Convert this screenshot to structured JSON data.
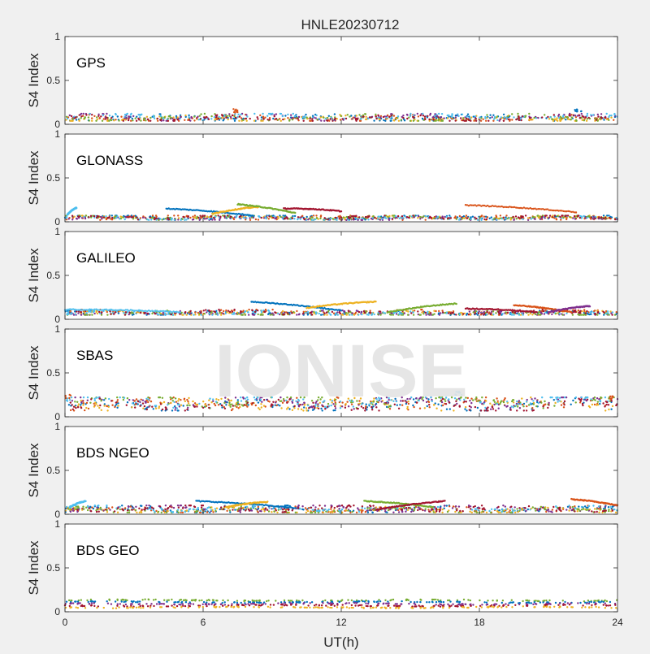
{
  "chart_data": {
    "type": "scatter",
    "title": "HNLE20230712",
    "xlabel": "UT(h)",
    "ylabel": "S4 Index",
    "xlim": [
      0,
      24
    ],
    "ylim": [
      0,
      1
    ],
    "xticks": [
      0,
      6,
      12,
      18,
      24
    ],
    "yticks": [
      0,
      0.5,
      1
    ],
    "ytick_labels": [
      "0",
      "0.5",
      "1"
    ],
    "grid": false,
    "watermark": "IONISE",
    "series_colors": [
      "#0072BD",
      "#D95319",
      "#EDB120",
      "#7E2F8E",
      "#77AC30",
      "#4DBEEE",
      "#A2142F"
    ],
    "panels": [
      {
        "label": "GPS",
        "baseline_range": [
          0.04,
          0.12
        ],
        "peaks": [
          {
            "x": 7.4,
            "y": 0.18
          },
          {
            "x": 22.3,
            "y": 0.19
          }
        ]
      },
      {
        "label": "GLONASS",
        "baseline_range": [
          0.02,
          0.07
        ],
        "arcs": [
          {
            "x_start": 0.1,
            "x_end": 0.5,
            "y_start": 0.08,
            "y_end": 0.16
          },
          {
            "x_start": 4.4,
            "x_end": 8.2,
            "y_start": 0.15,
            "y_end": 0.07
          },
          {
            "x_start": 6.4,
            "x_end": 8.4,
            "y_start": 0.09,
            "y_end": 0.17
          },
          {
            "x_start": 7.5,
            "x_end": 10.0,
            "y_start": 0.2,
            "y_end": 0.1
          },
          {
            "x_start": 9.5,
            "x_end": 12.0,
            "y_start": 0.15,
            "y_end": 0.12
          },
          {
            "x_start": 17.4,
            "x_end": 22.2,
            "y_start": 0.19,
            "y_end": 0.11
          }
        ]
      },
      {
        "label": "GALILEO",
        "baseline_range": [
          0.05,
          0.11
        ],
        "arcs": [
          {
            "x_start": 0.0,
            "x_end": 5.0,
            "y_start": 0.11,
            "y_end": 0.08
          },
          {
            "x_start": 8.1,
            "x_end": 12.0,
            "y_start": 0.2,
            "y_end": 0.1
          },
          {
            "x_start": 10.5,
            "x_end": 13.5,
            "y_start": 0.13,
            "y_end": 0.2
          },
          {
            "x_start": 14.0,
            "x_end": 17.0,
            "y_start": 0.08,
            "y_end": 0.18
          },
          {
            "x_start": 17.4,
            "x_end": 20.5,
            "y_start": 0.12,
            "y_end": 0.08
          },
          {
            "x_start": 19.5,
            "x_end": 22.0,
            "y_start": 0.16,
            "y_end": 0.08
          },
          {
            "x_start": 21.0,
            "x_end": 22.8,
            "y_start": 0.08,
            "y_end": 0.15
          }
        ]
      },
      {
        "label": "SBAS",
        "baseline_range": [
          0.07,
          0.22
        ],
        "peaks": [
          {
            "x": 0.1,
            "y": 0.25
          },
          {
            "x": 17.1,
            "y": 0.29
          },
          {
            "x": 23.8,
            "y": 0.25
          }
        ]
      },
      {
        "label": "BDS NGEO",
        "baseline_range": [
          0.02,
          0.1
        ],
        "arcs": [
          {
            "x_start": 0.2,
            "x_end": 0.9,
            "y_start": 0.08,
            "y_end": 0.15
          },
          {
            "x_start": 5.7,
            "x_end": 10.0,
            "y_start": 0.15,
            "y_end": 0.07
          },
          {
            "x_start": 7.0,
            "x_end": 8.8,
            "y_start": 0.08,
            "y_end": 0.14
          },
          {
            "x_start": 13.0,
            "x_end": 16.0,
            "y_start": 0.15,
            "y_end": 0.08
          },
          {
            "x_start": 13.5,
            "x_end": 16.5,
            "y_start": 0.05,
            "y_end": 0.15
          },
          {
            "x_start": 22.0,
            "x_end": 24.0,
            "y_start": 0.17,
            "y_end": 0.1
          }
        ]
      },
      {
        "label": "BDS GEO",
        "constant_levels": [
          0.13,
          0.11,
          0.09,
          0.07,
          0.05
        ]
      }
    ]
  }
}
